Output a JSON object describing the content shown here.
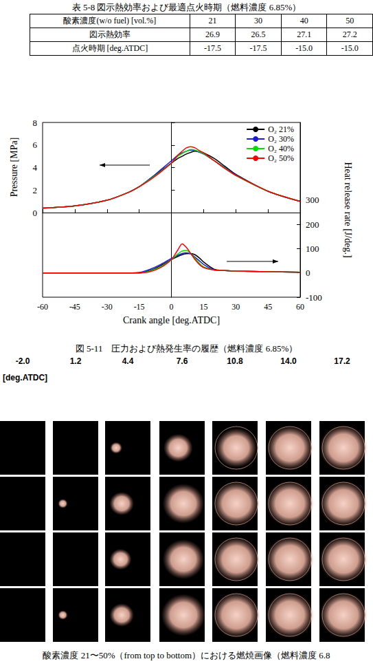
{
  "table": {
    "caption": "表 5-8 図示熱効率および最適点火時期（燃料濃度 6.85%）",
    "header": [
      "酸素濃度(w/o fuel) [vol.%]",
      "21",
      "30",
      "40",
      "50"
    ],
    "rows": [
      [
        "図示熱効率",
        "26.9",
        "26.5",
        "27.1",
        "27.2"
      ],
      [
        "点火時期  [deg.ATDC]",
        "-17.5",
        "-17.5",
        "-15.0",
        "-15.0"
      ]
    ]
  },
  "chart_data": {
    "type": "line",
    "x_label": "Crank angle [deg.ATDC]",
    "y_label": "Pressure [MPa]",
    "y2_label": "Heat release rate [J/deg.]",
    "x": [
      -60,
      -45,
      -30,
      -20,
      -15,
      -10,
      -5,
      0,
      3,
      5,
      7,
      9,
      11,
      13,
      15,
      20,
      25,
      30,
      45,
      60
    ],
    "xlim": [
      -60,
      60
    ],
    "xticks": [
      -60,
      -45,
      -30,
      -15,
      0,
      15,
      30,
      45,
      60
    ],
    "ylim": [
      -7.5,
      8
    ],
    "yticks": [
      0,
      2,
      4,
      6,
      8
    ],
    "y2lim": [
      -100,
      620
    ],
    "y2ticks": [
      -100,
      0,
      100,
      200,
      300
    ],
    "legend": "upper right",
    "grid": false,
    "series": [
      {
        "name": "O₂ 21%",
        "color": "#000000",
        "axis": "y",
        "values": [
          0.4,
          0.6,
          1.1,
          1.8,
          2.3,
          3.0,
          3.7,
          4.4,
          4.8,
          5.0,
          5.2,
          5.35,
          5.45,
          5.4,
          5.3,
          4.8,
          4.1,
          3.4,
          1.9,
          1.0
        ]
      },
      {
        "name": "O₂ 30%",
        "color": "#1a1ae0",
        "axis": "y",
        "values": [
          0.4,
          0.6,
          1.1,
          1.8,
          2.3,
          3.0,
          3.8,
          4.6,
          5.1,
          5.3,
          5.45,
          5.55,
          5.5,
          5.35,
          5.2,
          4.6,
          4.0,
          3.35,
          1.9,
          1.0
        ]
      },
      {
        "name": "O₂ 40%",
        "color": "#00dd00",
        "axis": "y",
        "values": [
          0.4,
          0.6,
          1.1,
          1.8,
          2.3,
          2.95,
          3.65,
          4.4,
          5.0,
          5.25,
          5.45,
          5.6,
          5.55,
          5.4,
          5.25,
          4.6,
          3.95,
          3.3,
          1.9,
          1.0
        ]
      },
      {
        "name": "O₂ 50%",
        "color": "#ff0000",
        "axis": "y",
        "values": [
          0.4,
          0.6,
          1.1,
          1.8,
          2.3,
          2.9,
          3.6,
          4.4,
          5.1,
          5.45,
          5.75,
          5.85,
          5.75,
          5.5,
          5.3,
          4.6,
          3.9,
          3.3,
          1.9,
          1.0
        ]
      },
      {
        "name": "O₂ 21%",
        "color": "#000000",
        "axis": "y2",
        "values": [
          0,
          0,
          0,
          0,
          0,
          10,
          30,
          55,
          68,
          75,
          79,
          80,
          75,
          62,
          45,
          15,
          10,
          8,
          5,
          3
        ]
      },
      {
        "name": "O₂ 30%",
        "color": "#1a1ae0",
        "axis": "y2",
        "values": [
          0,
          0,
          0,
          0,
          2,
          15,
          35,
          60,
          73,
          80,
          83,
          78,
          65,
          50,
          35,
          12,
          10,
          8,
          5,
          3
        ]
      },
      {
        "name": "O₂ 40%",
        "color": "#00dd00",
        "axis": "y2",
        "values": [
          0,
          0,
          0,
          0,
          0,
          8,
          25,
          55,
          78,
          90,
          93,
          80,
          60,
          40,
          25,
          12,
          10,
          8,
          5,
          3
        ]
      },
      {
        "name": "O₂ 50%",
        "color": "#ff0000",
        "axis": "y2",
        "values": [
          0,
          0,
          0,
          0,
          0,
          5,
          22,
          55,
          95,
          120,
          105,
          80,
          55,
          35,
          22,
          12,
          10,
          8,
          5,
          3
        ]
      }
    ]
  },
  "figure_caption": "図 5-11　圧力および熱発生率の履歴（燃料濃度 6.85%）",
  "images": {
    "crank_angles": [
      "-2.0",
      "1.2",
      "4.4",
      "7.6",
      "10.8",
      "14.0",
      "17.2"
    ],
    "unit": "[deg.ATDC]",
    "caption": "酸素濃度 21〜50%（from top to bottom）における燃焼画像（燃料濃度 6.8"
  }
}
